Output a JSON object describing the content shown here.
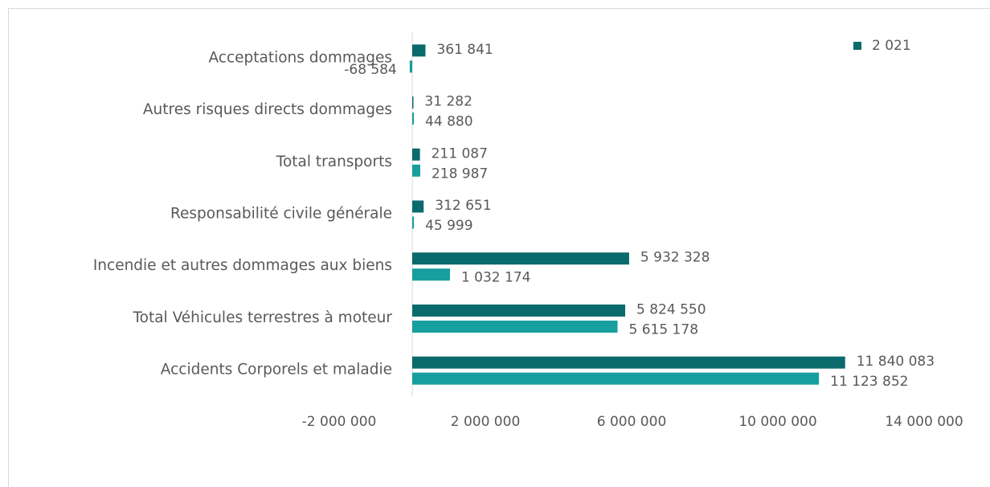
{
  "chart_data": {
    "type": "barh",
    "categories": [
      "Acceptations dommages",
      "Autres risques directs dommages",
      "Total transports",
      "Responsabilité civile générale",
      "Incendie et autres dommages aux biens",
      "Total Véhicules terrestres à moteur",
      "Accidents Corporels et maladie"
    ],
    "series": [
      {
        "name": "2 021",
        "color": "#0b6a6c",
        "values": [
          361841,
          31282,
          211087,
          312651,
          5932328,
          5824550,
          11840083
        ],
        "value_labels": [
          "361 841",
          "31 282",
          "211 087",
          "312 651",
          "5 932 328",
          "5 824 550",
          "11 840 083"
        ]
      },
      {
        "color": "#179e9e",
        "values": [
          -68584,
          44880,
          218987,
          45999,
          1032174,
          5615178,
          11123852
        ],
        "value_labels": [
          "-68 584",
          "44 880",
          "218 987",
          "45 999",
          "1 032 174",
          "5 615 178",
          "11 123 852"
        ]
      }
    ],
    "xlim": [
      -2000000,
      14000000
    ],
    "xticks": [
      {
        "value": -2000000,
        "label": "-2 000 000"
      },
      {
        "value": 2000000,
        "label": "2 000 000"
      },
      {
        "value": 6000000,
        "label": "6 000 000"
      },
      {
        "value": 10000000,
        "label": "10 000 000"
      },
      {
        "value": 14000000,
        "label": "14 000 000"
      }
    ],
    "legend": "top-right",
    "grid": false
  }
}
